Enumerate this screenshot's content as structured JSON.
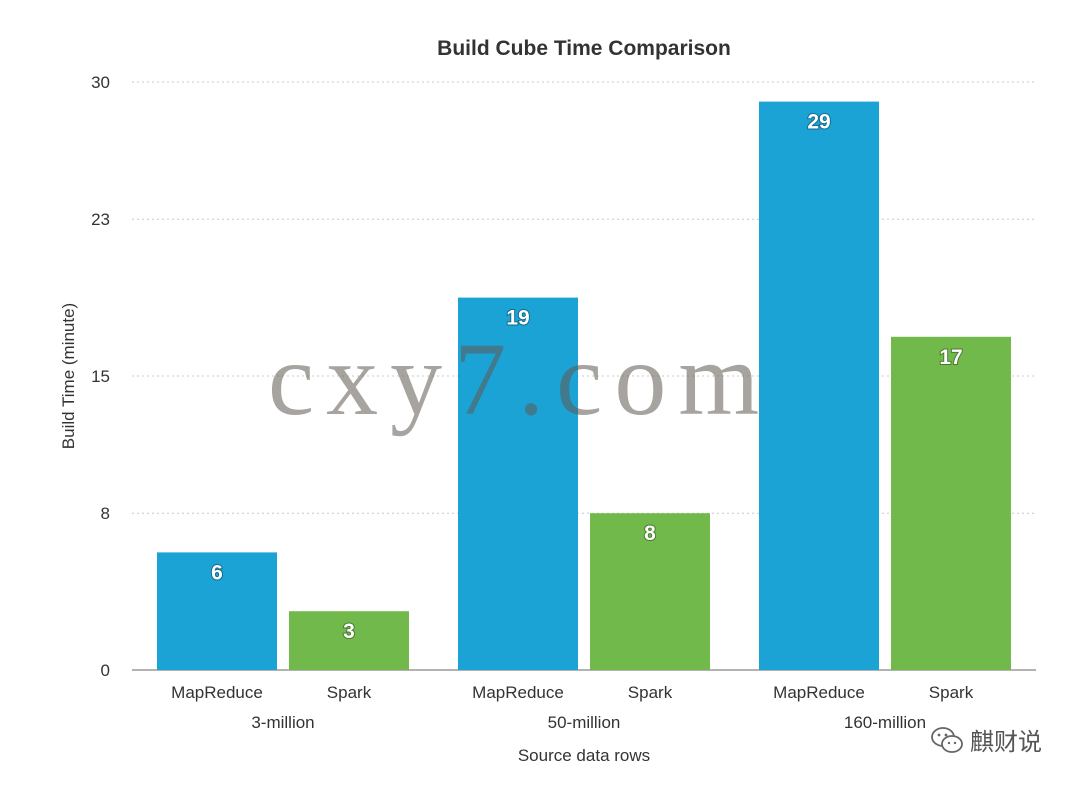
{
  "chart_data": {
    "type": "bar",
    "title": "Build Cube Time Comparison",
    "xlabel": "Source data rows",
    "ylabel": "Build Time (minute)",
    "ylim": [
      0,
      30
    ],
    "yticks": [
      "0",
      "8",
      "15",
      "23",
      "30"
    ],
    "grid": true,
    "groups": [
      {
        "label": "3-million",
        "bars": [
          {
            "category": "MapReduce",
            "value": 6,
            "label": "6",
            "color": "#1ba3d6"
          },
          {
            "category": "Spark",
            "value": 3,
            "label": "3",
            "color": "#72b94c"
          }
        ]
      },
      {
        "label": "50-million",
        "bars": [
          {
            "category": "MapReduce",
            "value": 19,
            "label": "19",
            "color": "#1ba3d6"
          },
          {
            "category": "Spark",
            "value": 8,
            "label": "8",
            "color": "#72b94c"
          }
        ]
      },
      {
        "label": "160-million",
        "bars": [
          {
            "category": "MapReduce",
            "value": 29,
            "label": "29",
            "color": "#1ba3d6"
          },
          {
            "category": "Spark",
            "value": 17,
            "label": "17",
            "color": "#72b94c"
          }
        ]
      }
    ]
  },
  "watermark": "cxy7.com",
  "brand": {
    "name": "麒财说",
    "icon": "wechat-icon"
  }
}
